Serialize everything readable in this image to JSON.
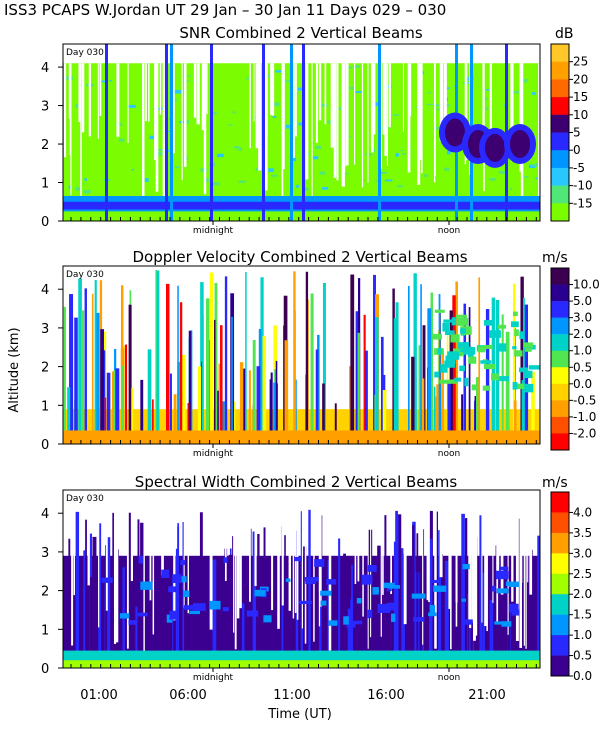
{
  "header": {
    "title": "ISS3 PCAPS W.Jordan UT  29 Jan – 30 Jan 11 Days 029 – 030"
  },
  "chart_data": [
    {
      "type": "heatmap",
      "title": "SNR Combined 2 Vertical Beams",
      "day_label": "Day 030",
      "xlabel": "",
      "ylabel": "",
      "ylim": [
        0,
        4.6
      ],
      "yticks": [
        "0",
        "1",
        "2",
        "3",
        "4"
      ],
      "x_markers": [
        "midnight",
        "noon"
      ],
      "colorbar": {
        "unit": "dB",
        "labels": [
          "25",
          "20",
          "15",
          "10",
          "5",
          "0",
          "-5",
          "-10",
          "-15"
        ],
        "colors": [
          "#ffc828",
          "#ffa000",
          "#ff6a00",
          "#ff0000",
          "#3c0070",
          "#2828ff",
          "#0096ff",
          "#28c8ff",
          "#50e678",
          "#7cfc00"
        ]
      }
    },
    {
      "type": "heatmap",
      "title": "Doppler Velocity Combined 2 Vertical Beams",
      "day_label": "Day 030",
      "xlabel": "",
      "ylabel": "Altitude (km)",
      "ylim": [
        0,
        4.6
      ],
      "yticks": [
        "0",
        "1",
        "2",
        "3",
        "4"
      ],
      "x_markers": [
        "midnight",
        "noon"
      ],
      "colorbar": {
        "unit": "m/s",
        "labels": [
          "10.0",
          "5.0",
          "3.0",
          "2.0",
          "1.0",
          "0.5",
          "0.0",
          "-0.5",
          "-1.0",
          "-2.0"
        ],
        "colors": [
          "#3c0050",
          "#2a0090",
          "#2828ff",
          "#0096ff",
          "#00d2c8",
          "#50e650",
          "#ffff00",
          "#ffd200",
          "#ffa000",
          "#ff5000",
          "#ff0000"
        ]
      }
    },
    {
      "type": "heatmap",
      "title": "Spectral Width Combined 2 Vertical Beams",
      "day_label": "Day 030",
      "xlabel": "Time (UT)",
      "ylabel": "",
      "ylim": [
        0,
        4.6
      ],
      "yticks": [
        "0",
        "1",
        "2",
        "3",
        "4"
      ],
      "xticks": [
        "01:00",
        "06:00",
        "11:00",
        "16:00",
        "21:00"
      ],
      "x_markers": [
        "midnight",
        "noon"
      ],
      "colorbar": {
        "unit": "m/s",
        "labels": [
          "4.0",
          "3.5",
          "3.0",
          "2.5",
          "2.0",
          "1.5",
          "1.0",
          "0.5",
          "0.0"
        ],
        "colors": [
          "#ff0000",
          "#ff5000",
          "#ffa000",
          "#ffff00",
          "#a0ff00",
          "#00d2c8",
          "#0096ff",
          "#2828ff",
          "#3c0090"
        ]
      }
    }
  ]
}
